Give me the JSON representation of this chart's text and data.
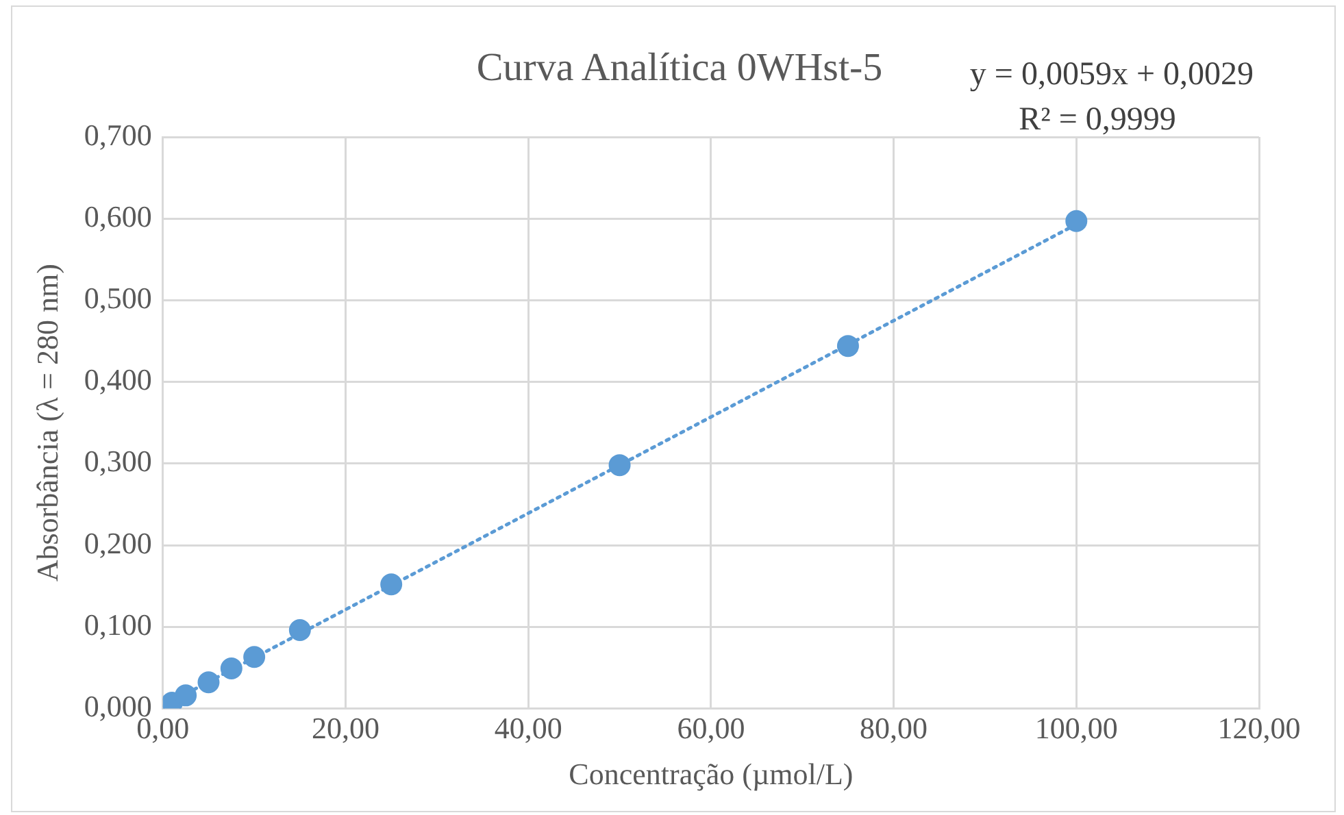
{
  "chart_data": {
    "type": "scatter",
    "title": "Curva Analítica 0WHst-5",
    "xlabel": "Concentração (µmol/L)",
    "ylabel": "Absorbância (λ = 280 nm)",
    "annotations": [
      "y = 0,0059x + 0,0029",
      "R² = 0,9999"
    ],
    "series": [
      {
        "type": "scatter",
        "color": "#5b9bd5",
        "marker": "circle",
        "x": [
          1,
          2.5,
          5,
          7.5,
          10,
          15,
          25,
          50,
          75,
          100
        ],
        "values": [
          0.007,
          0.016,
          0.032,
          0.049,
          0.063,
          0.096,
          0.152,
          0.298,
          0.444,
          0.597
        ]
      },
      {
        "type": "line",
        "color": "#5b9bd5",
        "marker": "none",
        "line_style": "dotted",
        "x": [
          1,
          100
        ],
        "values": [
          0.009,
          0.593
        ]
      }
    ],
    "xlim": [
      0,
      120
    ],
    "xticks": [
      {
        "value": 0,
        "label": "0,00"
      },
      {
        "value": 20,
        "label": "20,00"
      },
      {
        "value": 40,
        "label": "40,00"
      },
      {
        "value": 60,
        "label": "60,00"
      },
      {
        "value": 80,
        "label": "80,00"
      },
      {
        "value": 100,
        "label": "100,00"
      },
      {
        "value": 120,
        "label": "120,00"
      }
    ],
    "ylim": [
      0,
      0.7
    ],
    "yticks": [
      {
        "value": 0,
        "label": "0,000"
      },
      {
        "value": 0.1,
        "label": "0,100"
      },
      {
        "value": 0.2,
        "label": "0,200"
      },
      {
        "value": 0.3,
        "label": "0,300"
      },
      {
        "value": 0.4,
        "label": "0,400"
      },
      {
        "value": 0.5,
        "label": "0,500"
      },
      {
        "value": 0.6,
        "label": "0,600"
      },
      {
        "value": 0.7,
        "label": "0,700"
      }
    ],
    "grid": true,
    "legend": false
  }
}
